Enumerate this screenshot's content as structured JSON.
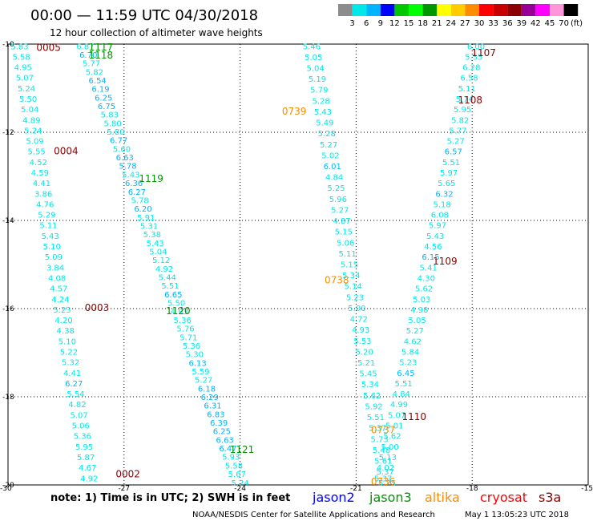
{
  "title": "00:00 — 11:59 UTC 04/30/2018",
  "subtitle": "12 hour collection of altimeter wave heights",
  "colorbar": {
    "unit": "(ft)",
    "labels": [
      "3",
      "6",
      "9",
      "12",
      "15",
      "18",
      "21",
      "24",
      "27",
      "30",
      "33",
      "36",
      "39",
      "42",
      "45",
      "70"
    ],
    "colors": [
      "#8c8c8c",
      "#00e8e8",
      "#00b4ff",
      "#0000ff",
      "#00c800",
      "#00ff00",
      "#009600",
      "#ffff00",
      "#ffcc00",
      "#ff8c00",
      "#ff0000",
      "#c80000",
      "#8c0000",
      "#960096",
      "#ff00ff",
      "#ff96dc",
      "#000000"
    ]
  },
  "note": "note: 1) Time is in UTC; 2) SWH is in feet",
  "legend": [
    {
      "name": "jason2",
      "color": "#0000ff"
    },
    {
      "name": "jason3",
      "color": "#009600"
    },
    {
      "name": "altika",
      "color": "#ff8c00"
    },
    {
      "name": "cryosat",
      "color": "#ff0000"
    },
    {
      "name": "s3a",
      "color": "#8c0000"
    }
  ],
  "footer_left": "NOAA/NESDIS Center for Satellite Applications and Research",
  "footer_right": "May  1 13:05:23 UTC 2018",
  "chart_data": {
    "type": "scatter",
    "xlim": [
      -30,
      -15
    ],
    "ylim": [
      -20,
      -10
    ],
    "x_ticks": [
      "-30",
      "-27",
      "-24",
      "-21",
      "-18",
      "-15"
    ],
    "y_ticks": [
      "-10",
      "-12",
      "-14",
      "-16",
      "-18",
      "-20"
    ],
    "grid": true,
    "time_labels": [
      {
        "text": "0005",
        "color": "#8c0000",
        "x": -28.95,
        "y": -10.08
      },
      {
        "text": "0004",
        "color": "#8c0000",
        "x": -28.5,
        "y": -12.43
      },
      {
        "text": "0003",
        "color": "#8c0000",
        "x": -27.7,
        "y": -15.98
      },
      {
        "text": "0002",
        "color": "#8c0000",
        "x": -26.9,
        "y": -19.75
      },
      {
        "text": "1117",
        "color": "#009600",
        "x": -27.6,
        "y": -10.07
      },
      {
        "text": "1118",
        "color": "#009600",
        "x": -27.6,
        "y": -10.25
      },
      {
        "text": "1119",
        "color": "#009600",
        "x": -26.3,
        "y": -13.05
      },
      {
        "text": "1120",
        "color": "#009600",
        "x": -25.6,
        "y": -16.05
      },
      {
        "text": "1121",
        "color": "#009600",
        "x": -23.95,
        "y": -19.2
      },
      {
        "text": "0739",
        "color": "#ff8c00",
        "x": -22.6,
        "y": -11.53
      },
      {
        "text": "0738",
        "color": "#ff8c00",
        "x": -21.5,
        "y": -15.35
      },
      {
        "text": "0737",
        "color": "#ff8c00",
        "x": -20.3,
        "y": -18.75
      },
      {
        "text": "0736",
        "color": "#ff8c00",
        "x": -20.3,
        "y": -19.93
      },
      {
        "text": "1107",
        "color": "#8c0000",
        "x": -17.7,
        "y": -10.2
      },
      {
        "text": "1108",
        "color": "#8c0000",
        "x": -18.05,
        "y": -11.27
      },
      {
        "text": "1109",
        "color": "#8c0000",
        "x": -18.7,
        "y": -14.93
      },
      {
        "text": "1110",
        "color": "#8c0000",
        "x": -19.5,
        "y": -18.45
      }
    ],
    "series": [
      {
        "x_start": -29.7,
        "y_start": -10.05,
        "x_end": -27.9,
        "y_end": -19.85,
        "values": [
          "5.83",
          "5.58",
          "4.95",
          "5.07",
          "5.24",
          "5.50",
          "5.04",
          "4.89",
          "5.24",
          "5.09",
          "5.55",
          "4.52",
          "4.59",
          "4.41",
          "3.86",
          "4.76",
          "5.29",
          "5.11",
          "5.43",
          "5.10",
          "5.09",
          "3.84",
          "4.08",
          "4.57",
          "4.24",
          "5.23",
          "4.20",
          "4.38",
          "5.10",
          "5.22",
          "5.32",
          "4.41",
          "6.27",
          "5.54",
          "4.82",
          "5.07",
          "5.06",
          "5.36",
          "5.95",
          "5.87",
          "4.67",
          "4.92"
        ],
        "colors": [
          "c",
          "c",
          "c",
          "c",
          "c",
          "c",
          "c",
          "c",
          "c",
          "c",
          "c",
          "c",
          "c",
          "c",
          "c",
          "c",
          "c",
          "c",
          "c",
          "c",
          "c",
          "c",
          "c",
          "c",
          "c",
          "c",
          "c",
          "c",
          "c",
          "c",
          "c",
          "c",
          "b",
          "c",
          "c",
          "c",
          "c",
          "c",
          "c",
          "c",
          "c",
          "c"
        ]
      },
      {
        "x_start": -28.0,
        "y_start": -10.05,
        "x_end": -24.0,
        "y_end": -19.95,
        "values": [
          "6.87",
          "6.70",
          "5.77",
          "5.82",
          "6.54",
          "6.19",
          "6.25",
          "6.75",
          "5.83",
          "5.80",
          "5.80",
          "6.77",
          "5.60",
          "6.63",
          "5.78",
          "5.43",
          "6.36",
          "6.27",
          "5.78",
          "6.20",
          "5.91",
          "5.31",
          "5.38",
          "5.43",
          "5.04",
          "5.12",
          "4.92",
          "5.44",
          "5.51",
          "6.65",
          "5.50",
          "4.93",
          "5.36",
          "5.76",
          "5.71",
          "5.36",
          "5.30",
          "6.13",
          "5.59",
          "5.27",
          "6.18",
          "6.29",
          "6.31",
          "6.83",
          "6.39",
          "6.25",
          "6.63",
          "6.47",
          "5.93",
          "5.58",
          "5.67",
          "5.24"
        ],
        "colors": [
          "c",
          "b",
          "c",
          "c",
          "b",
          "b",
          "b",
          "b",
          "c",
          "c",
          "c",
          "b",
          "c",
          "b",
          "b",
          "c",
          "b",
          "b",
          "c",
          "b",
          "c",
          "c",
          "c",
          "c",
          "c",
          "c",
          "c",
          "c",
          "c",
          "b",
          "c",
          "c",
          "c",
          "c",
          "c",
          "c",
          "c",
          "b",
          "c",
          "c",
          "b",
          "b",
          "b",
          "b",
          "b",
          "b",
          "b",
          "b",
          "c",
          "c",
          "c",
          "c"
        ]
      },
      {
        "x_start": -22.15,
        "y_start": -10.05,
        "x_end": -20.2,
        "y_end": -19.95,
        "values": [
          "5.46",
          "5.05",
          "5.04",
          "5.19",
          "5.79",
          "5.28",
          "5.43",
          "5.49",
          "5.28",
          "5.27",
          "5.02",
          "6.01",
          "4.84",
          "5.25",
          "5.96",
          "5.27",
          "4.87",
          "5.15",
          "5.06",
          "5.11",
          "5.15",
          "5.34",
          "5.14",
          "5.23",
          "5.00",
          "4.72",
          "4.93",
          "5.53",
          "5.20",
          "5.21",
          "5.45",
          "5.34",
          "5.62",
          "5.92",
          "5.51",
          "5.37",
          "5.73",
          "5.48",
          "5.61",
          "5.37",
          "5.25"
        ],
        "colors": [
          "c",
          "c",
          "c",
          "c",
          "c",
          "c",
          "c",
          "c",
          "c",
          "c",
          "c",
          "b",
          "c",
          "c",
          "c",
          "c",
          "c",
          "c",
          "c",
          "c",
          "c",
          "c",
          "c",
          "c",
          "c",
          "c",
          "c",
          "c",
          "c",
          "c",
          "c",
          "c",
          "c",
          "c",
          "c",
          "c",
          "c",
          "c",
          "c",
          "c",
          "c"
        ]
      },
      {
        "x_start": -17.9,
        "y_start": -10.05,
        "x_end": -20.3,
        "y_end": -19.85,
        "values": [
          "6.00",
          "5.55",
          "6.28",
          "6.58",
          "5.11",
          "5.74",
          "5.95",
          "5.82",
          "5.77",
          "5.27",
          "6.57",
          "5.51",
          "5.97",
          "5.65",
          "6.32",
          "5.18",
          "6.08",
          "5.97",
          "5.43",
          "4.56",
          "6.15",
          "5.41",
          "4.30",
          "5.62",
          "5.03",
          "4.98",
          "5.05",
          "5.27",
          "4.62",
          "5.84",
          "5.23",
          "6.45",
          "5.51",
          "4.84",
          "4.99",
          "5.07",
          "5.01",
          "5.62",
          "5.00",
          "5.13",
          "4.02",
          "5.37"
        ],
        "colors": [
          "c",
          "c",
          "c",
          "c",
          "c",
          "c",
          "c",
          "c",
          "c",
          "c",
          "b",
          "c",
          "c",
          "c",
          "b",
          "c",
          "c",
          "c",
          "c",
          "c",
          "b",
          "c",
          "c",
          "c",
          "c",
          "c",
          "c",
          "c",
          "c",
          "c",
          "c",
          "b",
          "c",
          "c",
          "c",
          "c",
          "c",
          "c",
          "c",
          "c",
          "c",
          "c"
        ]
      }
    ]
  }
}
